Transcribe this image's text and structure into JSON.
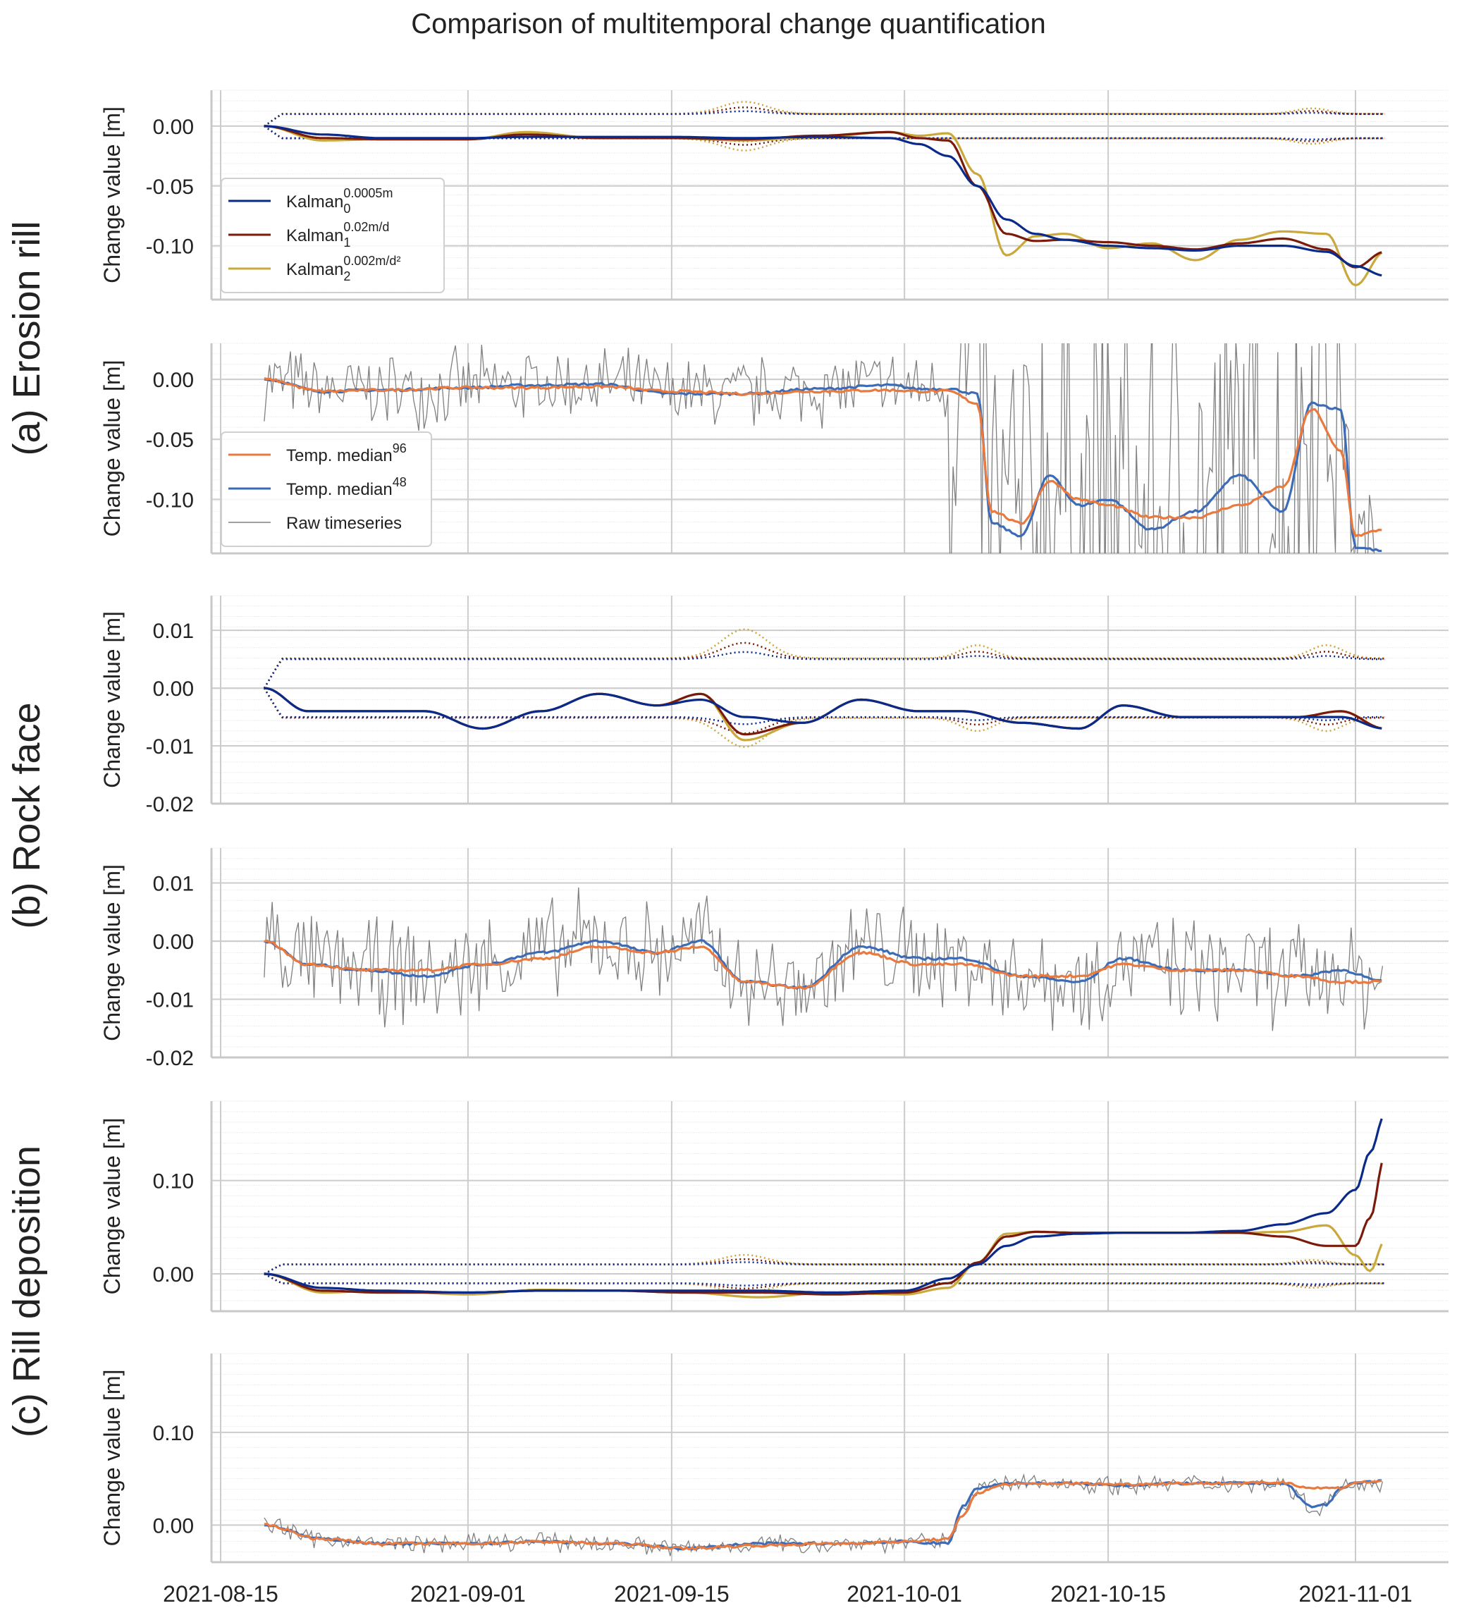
{
  "title": "Comparison of multitemporal change quantification",
  "row_labels": [
    "(a) Erosion rill",
    "(b) Rock face",
    "(c) Rill deposition"
  ],
  "colors": {
    "kalman0": "#0a2a8a",
    "kalman1": "#7a1a0a",
    "kalman2": "#c9a83c",
    "median96": "#e8793f",
    "median48": "#3d6bb5",
    "raw": "#808080",
    "grid": "#cccccc"
  },
  "chart_data": [
    {
      "type": "line",
      "panel": "a-kalman",
      "ylabel": "Change value [m]",
      "ylim": [
        -0.145,
        0.03
      ],
      "yticks": [
        "0.00",
        "-0.05",
        "-0.10"
      ],
      "ytick_values": [
        0.0,
        -0.05,
        -0.1
      ],
      "xticks": [
        "2021-08-15",
        "2021-09-01",
        "2021-09-15",
        "2021-10-01",
        "2021-10-15",
        "2021-11-01"
      ],
      "legend": {
        "position": "lower-left",
        "entries": [
          {
            "label": "Kalman",
            "sub": "0",
            "sup": "0.0005m",
            "series": "kalman0"
          },
          {
            "label": "Kalman",
            "sub": "1",
            "sup": "0.02m/d",
            "series": "kalman1"
          },
          {
            "label": "Kalman",
            "sub": "2",
            "sup": "0.002m/d²",
            "series": "kalman2"
          }
        ]
      },
      "x": [
        "08-18",
        "08-22",
        "08-26",
        "09-01",
        "09-05",
        "09-10",
        "09-15",
        "09-20",
        "09-25",
        "09-30",
        "10-02",
        "10-04",
        "10-06",
        "10-08",
        "10-10",
        "10-12",
        "10-15",
        "10-18",
        "10-21",
        "10-24",
        "10-27",
        "10-30",
        "11-01",
        "11-03"
      ],
      "series": [
        {
          "name": "kalman0",
          "values": [
            0.0,
            -0.007,
            -0.01,
            -0.01,
            -0.009,
            -0.009,
            -0.009,
            -0.01,
            -0.009,
            -0.01,
            -0.015,
            -0.025,
            -0.05,
            -0.078,
            -0.09,
            -0.095,
            -0.1,
            -0.102,
            -0.104,
            -0.1,
            -0.1,
            -0.105,
            -0.117,
            -0.125
          ]
        },
        {
          "name": "kalman1",
          "values": [
            0.0,
            -0.01,
            -0.011,
            -0.011,
            -0.007,
            -0.01,
            -0.01,
            -0.011,
            -0.008,
            -0.005,
            -0.01,
            -0.012,
            -0.05,
            -0.09,
            -0.096,
            -0.095,
            -0.097,
            -0.1,
            -0.103,
            -0.098,
            -0.094,
            -0.103,
            -0.118,
            -0.105
          ]
        },
        {
          "name": "kalman2",
          "values": [
            0.0,
            -0.012,
            -0.011,
            -0.011,
            -0.005,
            -0.01,
            -0.01,
            -0.012,
            -0.009,
            -0.005,
            -0.008,
            -0.006,
            -0.04,
            -0.108,
            -0.092,
            -0.09,
            -0.102,
            -0.098,
            -0.112,
            -0.095,
            -0.088,
            -0.09,
            -0.133,
            -0.105
          ]
        }
      ],
      "uncertainty_band": {
        "upper": 0.01,
        "lower": -0.01,
        "peak_dates": [
          "09-20",
          "10-29"
        ]
      }
    },
    {
      "type": "line",
      "panel": "a-median",
      "ylabel": "Change value [m]",
      "ylim": [
        -0.145,
        0.03
      ],
      "yticks": [
        "0.00",
        "-0.05",
        "-0.10"
      ],
      "ytick_values": [
        0.0,
        -0.05,
        -0.1
      ],
      "legend": {
        "position": "lower-left",
        "entries": [
          {
            "label": "Temp. median",
            "sup": "96",
            "series": "median96"
          },
          {
            "label": "Temp. median",
            "sup": "48",
            "series": "median48"
          },
          {
            "label": "Raw timeseries",
            "series": "raw"
          }
        ]
      },
      "x": [
        "08-18",
        "08-22",
        "08-26",
        "09-01",
        "09-05",
        "09-10",
        "09-15",
        "09-20",
        "09-25",
        "09-30",
        "10-02",
        "10-04",
        "10-06",
        "10-07",
        "10-09",
        "10-11",
        "10-13",
        "10-15",
        "10-18",
        "10-21",
        "10-24",
        "10-27",
        "10-29",
        "10-31",
        "11-01",
        "11-03"
      ],
      "series": [
        {
          "name": "median96",
          "values": [
            0.0,
            -0.01,
            -0.009,
            -0.007,
            -0.007,
            -0.006,
            -0.01,
            -0.012,
            -0.01,
            -0.009,
            -0.01,
            -0.01,
            -0.02,
            -0.11,
            -0.12,
            -0.085,
            -0.1,
            -0.105,
            -0.115,
            -0.115,
            -0.105,
            -0.09,
            -0.025,
            -0.06,
            -0.13,
            -0.125
          ]
        },
        {
          "name": "median48",
          "values": [
            0.0,
            -0.01,
            -0.009,
            -0.007,
            -0.005,
            -0.004,
            -0.012,
            -0.012,
            -0.008,
            -0.005,
            -0.008,
            -0.008,
            -0.012,
            -0.12,
            -0.13,
            -0.08,
            -0.105,
            -0.1,
            -0.125,
            -0.11,
            -0.08,
            -0.11,
            -0.02,
            -0.025,
            -0.14,
            -0.143
          ]
        }
      ],
      "raw_range": [
        -0.145,
        0.03
      ]
    },
    {
      "type": "line",
      "panel": "b-kalman",
      "ylabel": "Change value [m]",
      "ylim": [
        -0.02,
        0.016
      ],
      "yticks": [
        "0.01",
        "0.00",
        "-0.01",
        "-0.02"
      ],
      "ytick_values": [
        0.01,
        0.0,
        -0.01,
        -0.02
      ],
      "x": [
        "08-18",
        "08-21",
        "08-25",
        "08-29",
        "09-02",
        "09-06",
        "09-10",
        "09-14",
        "09-17",
        "09-20",
        "09-24",
        "09-28",
        "10-02",
        "10-05",
        "10-09",
        "10-13",
        "10-16",
        "10-20",
        "10-24",
        "10-28",
        "10-31",
        "11-03"
      ],
      "series": [
        {
          "name": "kalman0",
          "values": [
            0.0,
            -0.004,
            -0.004,
            -0.004,
            -0.007,
            -0.004,
            -0.001,
            -0.003,
            -0.002,
            -0.005,
            -0.006,
            -0.002,
            -0.004,
            -0.004,
            -0.006,
            -0.007,
            -0.003,
            -0.005,
            -0.005,
            -0.005,
            -0.005,
            -0.007
          ]
        },
        {
          "name": "kalman1",
          "values": [
            0.0,
            -0.004,
            -0.004,
            -0.004,
            -0.007,
            -0.004,
            -0.001,
            -0.003,
            -0.001,
            -0.008,
            -0.006,
            -0.002,
            -0.004,
            -0.004,
            -0.006,
            -0.007,
            -0.003,
            -0.005,
            -0.005,
            -0.005,
            -0.004,
            -0.007
          ]
        },
        {
          "name": "kalman2",
          "values": [
            0.0,
            -0.004,
            -0.004,
            -0.004,
            -0.007,
            -0.004,
            -0.001,
            -0.003,
            -0.001,
            -0.009,
            -0.006,
            -0.002,
            -0.004,
            -0.004,
            -0.006,
            -0.007,
            -0.003,
            -0.005,
            -0.005,
            -0.005,
            -0.004,
            -0.007
          ]
        }
      ],
      "uncertainty_band": {
        "upper": 0.005,
        "lower": -0.005,
        "peak_dates": [
          "09-20",
          "10-06",
          "10-30"
        ]
      }
    },
    {
      "type": "line",
      "panel": "b-median",
      "ylabel": "Change value [m]",
      "ylim": [
        -0.02,
        0.016
      ],
      "yticks": [
        "0.01",
        "0.00",
        "-0.01",
        "-0.02"
      ],
      "ytick_values": [
        0.01,
        0.0,
        -0.01,
        -0.02
      ],
      "x": [
        "08-18",
        "08-21",
        "08-25",
        "08-29",
        "09-02",
        "09-06",
        "09-10",
        "09-14",
        "09-17",
        "09-20",
        "09-24",
        "09-28",
        "10-02",
        "10-05",
        "10-09",
        "10-13",
        "10-16",
        "10-20",
        "10-24",
        "10-28",
        "10-31",
        "11-03"
      ],
      "series": [
        {
          "name": "median96",
          "values": [
            0.0,
            -0.004,
            -0.005,
            -0.005,
            -0.004,
            -0.003,
            -0.001,
            -0.002,
            -0.001,
            -0.007,
            -0.008,
            -0.002,
            -0.004,
            -0.004,
            -0.006,
            -0.006,
            -0.004,
            -0.005,
            -0.005,
            -0.006,
            -0.007,
            -0.007
          ]
        },
        {
          "name": "median48",
          "values": [
            0.0,
            -0.004,
            -0.005,
            -0.006,
            -0.004,
            -0.002,
            0.0,
            -0.002,
            0.0,
            -0.007,
            -0.008,
            -0.001,
            -0.003,
            -0.003,
            -0.006,
            -0.007,
            -0.003,
            -0.005,
            -0.005,
            -0.006,
            -0.005,
            -0.007
          ]
        }
      ],
      "raw_range": [
        -0.02,
        0.01
      ]
    },
    {
      "type": "line",
      "panel": "c-kalman",
      "ylabel": "Change value [m]",
      "ylim": [
        -0.04,
        0.185
      ],
      "yticks": [
        "0.10",
        "0.00"
      ],
      "ytick_values": [
        0.1,
        0.0
      ],
      "x": [
        "08-18",
        "08-22",
        "08-26",
        "09-01",
        "09-06",
        "09-11",
        "09-16",
        "09-21",
        "09-26",
        "10-01",
        "10-04",
        "10-06",
        "10-08",
        "10-10",
        "10-13",
        "10-16",
        "10-20",
        "10-24",
        "10-27",
        "10-30",
        "11-01",
        "11-02",
        "11-03"
      ],
      "series": [
        {
          "name": "kalman0",
          "values": [
            0.0,
            -0.015,
            -0.018,
            -0.02,
            -0.018,
            -0.018,
            -0.018,
            -0.018,
            -0.02,
            -0.018,
            -0.005,
            0.01,
            0.03,
            0.04,
            0.043,
            0.044,
            0.044,
            0.046,
            0.053,
            0.065,
            0.09,
            0.13,
            0.17
          ]
        },
        {
          "name": "kalman1",
          "values": [
            0.0,
            -0.018,
            -0.02,
            -0.02,
            -0.018,
            -0.018,
            -0.02,
            -0.02,
            -0.022,
            -0.02,
            -0.01,
            0.012,
            0.04,
            0.045,
            0.044,
            0.044,
            0.044,
            0.044,
            0.04,
            0.03,
            0.03,
            0.06,
            0.125
          ]
        },
        {
          "name": "kalman2",
          "values": [
            0.0,
            -0.02,
            -0.018,
            -0.022,
            -0.017,
            -0.018,
            -0.02,
            -0.025,
            -0.02,
            -0.022,
            -0.015,
            0.012,
            0.043,
            0.045,
            0.044,
            0.044,
            0.044,
            0.044,
            0.045,
            0.052,
            0.02,
            0.003,
            0.035
          ]
        }
      ],
      "uncertainty_band": {
        "upper": 0.01,
        "lower": -0.01,
        "peak_dates": [
          "09-20",
          "10-29"
        ]
      }
    },
    {
      "type": "line",
      "panel": "c-median",
      "ylabel": "Change value [m]",
      "ylim": [
        -0.04,
        0.185
      ],
      "yticks": [
        "0.10",
        "0.00"
      ],
      "ytick_values": [
        0.1,
        0.0
      ],
      "x": [
        "08-18",
        "08-22",
        "08-26",
        "09-01",
        "09-06",
        "09-11",
        "09-16",
        "09-21",
        "09-26",
        "10-01",
        "10-04",
        "10-05",
        "10-06",
        "10-08",
        "10-12",
        "10-16",
        "10-20",
        "10-24",
        "10-27",
        "10-29",
        "10-30",
        "10-31",
        "11-01",
        "11-03"
      ],
      "series": [
        {
          "name": "median96",
          "values": [
            0.0,
            -0.015,
            -0.02,
            -0.02,
            -0.018,
            -0.02,
            -0.025,
            -0.022,
            -0.02,
            -0.018,
            -0.015,
            0.01,
            0.035,
            0.044,
            0.045,
            0.044,
            0.045,
            0.045,
            0.046,
            0.04,
            0.04,
            0.04,
            0.046,
            0.047
          ]
        },
        {
          "name": "median48",
          "values": [
            0.0,
            -0.015,
            -0.02,
            -0.02,
            -0.018,
            -0.02,
            -0.025,
            -0.02,
            -0.02,
            -0.018,
            -0.02,
            0.02,
            0.04,
            0.045,
            0.045,
            0.043,
            0.045,
            0.045,
            0.045,
            0.02,
            0.022,
            0.04,
            0.046,
            0.047
          ]
        }
      ],
      "raw_range": [
        -0.04,
        0.06
      ]
    }
  ]
}
